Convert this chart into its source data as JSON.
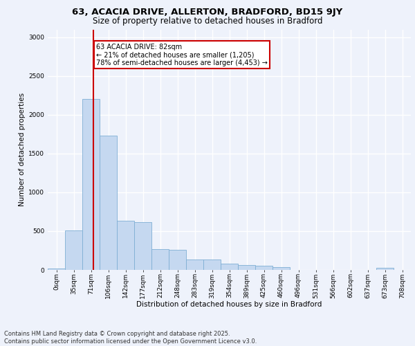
{
  "title_line1": "63, ACACIA DRIVE, ALLERTON, BRADFORD, BD15 9JY",
  "title_line2": "Size of property relative to detached houses in Bradford",
  "xlabel": "Distribution of detached houses by size in Bradford",
  "ylabel": "Number of detached properties",
  "bin_labels": [
    "0sqm",
    "35sqm",
    "71sqm",
    "106sqm",
    "142sqm",
    "177sqm",
    "212sqm",
    "248sqm",
    "283sqm",
    "319sqm",
    "354sqm",
    "389sqm",
    "425sqm",
    "460sqm",
    "496sqm",
    "531sqm",
    "566sqm",
    "602sqm",
    "637sqm",
    "673sqm",
    "708sqm"
  ],
  "bar_values": [
    20,
    510,
    2200,
    1730,
    630,
    620,
    270,
    260,
    130,
    130,
    80,
    60,
    50,
    35,
    0,
    0,
    0,
    0,
    0,
    30,
    0
  ],
  "bar_color": "#c5d8f0",
  "bar_edge_color": "#7fafd4",
  "vline_x_index": 2.15,
  "vline_color": "#cc0000",
  "annotation_text": "63 ACACIA DRIVE: 82sqm\n← 21% of detached houses are smaller (1,205)\n78% of semi-detached houses are larger (4,453) →",
  "annotation_box_color": "#ffffff",
  "annotation_box_edge_color": "#cc0000",
  "ylim": [
    0,
    3100
  ],
  "yticks": [
    0,
    500,
    1000,
    1500,
    2000,
    2500,
    3000
  ],
  "background_color": "#eef2fb",
  "grid_color": "#ffffff",
  "footer_text": "Contains HM Land Registry data © Crown copyright and database right 2025.\nContains public sector information licensed under the Open Government Licence v3.0.",
  "title_fontsize": 9.5,
  "subtitle_fontsize": 8.5,
  "label_fontsize": 7.5,
  "tick_fontsize": 6.5,
  "annotation_fontsize": 7.0,
  "footer_fontsize": 6.0
}
